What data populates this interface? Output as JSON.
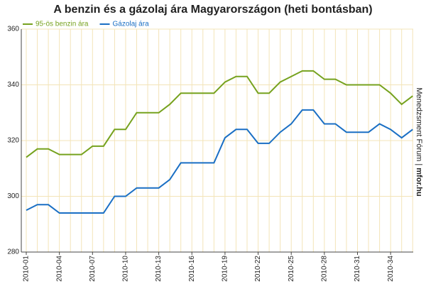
{
  "chart_data": {
    "type": "line",
    "title": "A benzin és a gázolaj ára Magyarországon (heti bontásban)",
    "source": "Menedzsment Fórum | ",
    "source_site": "mfor.hu",
    "categories": [
      "2010-01",
      null,
      null,
      "2010-04",
      null,
      null,
      "2010-07",
      null,
      null,
      "2010-10",
      null,
      null,
      "2010-13",
      null,
      null,
      "2010-16",
      null,
      null,
      "2010-19",
      null,
      null,
      "2010-22",
      null,
      null,
      "2010-25",
      null,
      null,
      "2010-28",
      null,
      null,
      "2010-31",
      null,
      null,
      "2010-34",
      null,
      null
    ],
    "series": [
      {
        "name": "95-ös benzin ára",
        "color": "#76a21e",
        "values": [
          314,
          317,
          317,
          315,
          315,
          315,
          318,
          318,
          324,
          324,
          330,
          330,
          330,
          333,
          337,
          337,
          337,
          337,
          341,
          343,
          343,
          337,
          337,
          341,
          343,
          345,
          345,
          342,
          342,
          340,
          340,
          340,
          340,
          337,
          333,
          336
        ]
      },
      {
        "name": "Gázolaj ára",
        "color": "#1a6fc4",
        "values": [
          295,
          297,
          297,
          294,
          294,
          294,
          294,
          294,
          300,
          300,
          303,
          303,
          303,
          306,
          312,
          312,
          312,
          312,
          321,
          324,
          324,
          319,
          319,
          323,
          326,
          331,
          331,
          326,
          326,
          323,
          323,
          323,
          326,
          324,
          321,
          324
        ]
      }
    ],
    "ylim": [
      280,
      360
    ],
    "yticks": [
      280,
      300,
      320,
      340,
      360
    ],
    "grid": true
  }
}
